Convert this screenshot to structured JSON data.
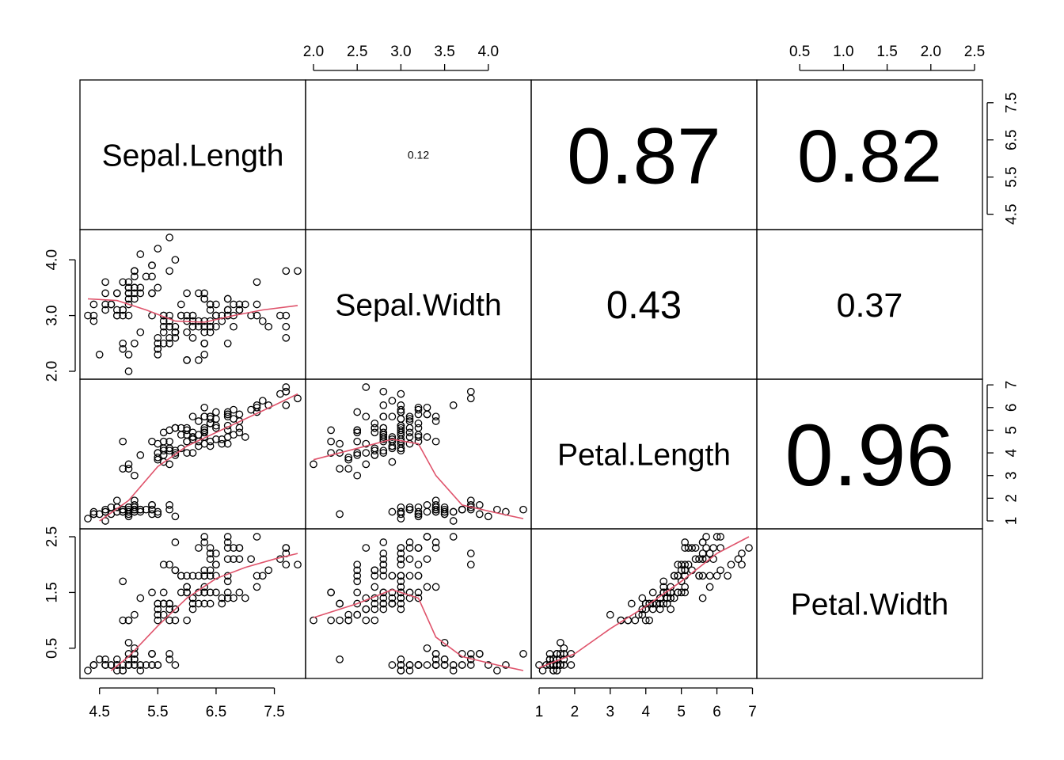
{
  "chart_data": {
    "type": "scatter",
    "variables": [
      "Sepal.Length",
      "Sepal.Width",
      "Petal.Length",
      "Petal.Width"
    ],
    "ranges": {
      "Sepal.Length": [
        4.3,
        7.9
      ],
      "Sepal.Width": [
        2.0,
        4.4
      ],
      "Petal.Length": [
        1.0,
        6.9
      ],
      "Petal.Width": [
        0.1,
        2.5
      ]
    },
    "ticks": {
      "Sepal.Length": [
        "4.5",
        "5.5",
        "6.5",
        "7.5"
      ],
      "Sepal.Width": [
        "2.0",
        "2.5",
        "3.0",
        "3.5",
        "4.0"
      ],
      "Petal.Length": [
        "1",
        "2",
        "3",
        "4",
        "5",
        "6",
        "7"
      ],
      "Petal.Width": [
        "0.5",
        "1.0",
        "1.5",
        "2.0",
        "2.5"
      ]
    },
    "left_axis_ticks": {
      "Sepal.Width": [
        "2.0",
        "3.0",
        "4.0"
      ],
      "Petal.Width": [
        "0.5",
        "1.5",
        "2.5"
      ]
    },
    "right_axis_ticks": {
      "Sepal.Length": [
        "4.5",
        "5.5",
        "6.5",
        "7.5"
      ],
      "Petal.Length": [
        "1",
        "2",
        "3",
        "4",
        "5",
        "6",
        "7"
      ]
    },
    "correlations": [
      {
        "row": 0,
        "col": 1,
        "value": "0.12"
      },
      {
        "row": 0,
        "col": 2,
        "value": "0.87"
      },
      {
        "row": 0,
        "col": 3,
        "value": "0.82"
      },
      {
        "row": 1,
        "col": 2,
        "value": "0.43"
      },
      {
        "row": 1,
        "col": 3,
        "value": "0.37"
      },
      {
        "row": 2,
        "col": 3,
        "value": "0.96"
      }
    ],
    "point_color": "#000000",
    "smooth_color": "#DF536B",
    "smooth_lines": {
      "SL_SW": [
        [
          4.3,
          3.3
        ],
        [
          4.8,
          3.27
        ],
        [
          5.3,
          3.1
        ],
        [
          5.8,
          2.9
        ],
        [
          6.3,
          2.88
        ],
        [
          6.8,
          3.0
        ],
        [
          7.3,
          3.1
        ],
        [
          7.9,
          3.18
        ]
      ],
      "SL_PL": [
        [
          4.5,
          1.0
        ],
        [
          5.0,
          1.9
        ],
        [
          5.5,
          3.4
        ],
        [
          6.0,
          4.3
        ],
        [
          6.5,
          4.9
        ],
        [
          7.0,
          5.5
        ],
        [
          7.5,
          6.1
        ],
        [
          7.9,
          6.6
        ]
      ],
      "SL_PW": [
        [
          4.7,
          0.1
        ],
        [
          5.0,
          0.35
        ],
        [
          5.5,
          0.9
        ],
        [
          6.0,
          1.4
        ],
        [
          6.5,
          1.75
        ],
        [
          7.0,
          1.95
        ],
        [
          7.5,
          2.1
        ],
        [
          7.9,
          2.2
        ]
      ],
      "SW_PL": [
        [
          2.0,
          3.7
        ],
        [
          2.5,
          4.2
        ],
        [
          2.9,
          4.6
        ],
        [
          3.2,
          4.4
        ],
        [
          3.4,
          3.0
        ],
        [
          3.7,
          1.7
        ],
        [
          4.1,
          1.35
        ],
        [
          4.4,
          1.1
        ]
      ],
      "SW_PW": [
        [
          2.0,
          1.05
        ],
        [
          2.5,
          1.3
        ],
        [
          2.9,
          1.55
        ],
        [
          3.2,
          1.4
        ],
        [
          3.4,
          0.7
        ],
        [
          3.7,
          0.35
        ],
        [
          4.1,
          0.2
        ],
        [
          4.4,
          0.1
        ]
      ],
      "PL_PW": [
        [
          1.0,
          0.15
        ],
        [
          2.0,
          0.4
        ],
        [
          3.0,
          0.85
        ],
        [
          4.0,
          1.25
        ],
        [
          5.0,
          1.7
        ],
        [
          6.0,
          2.2
        ],
        [
          6.9,
          2.5
        ]
      ]
    },
    "samples": [
      [
        5.1,
        3.5,
        1.4,
        0.2
      ],
      [
        4.9,
        3.0,
        1.4,
        0.2
      ],
      [
        4.7,
        3.2,
        1.3,
        0.2
      ],
      [
        4.6,
        3.1,
        1.5,
        0.2
      ],
      [
        5.0,
        3.6,
        1.4,
        0.2
      ],
      [
        5.4,
        3.9,
        1.7,
        0.4
      ],
      [
        4.6,
        3.4,
        1.4,
        0.3
      ],
      [
        5.0,
        3.4,
        1.5,
        0.2
      ],
      [
        4.4,
        2.9,
        1.4,
        0.2
      ],
      [
        4.9,
        3.1,
        1.5,
        0.1
      ],
      [
        5.4,
        3.7,
        1.5,
        0.2
      ],
      [
        4.8,
        3.4,
        1.6,
        0.2
      ],
      [
        4.8,
        3.0,
        1.4,
        0.1
      ],
      [
        4.3,
        3.0,
        1.1,
        0.1
      ],
      [
        5.8,
        4.0,
        1.2,
        0.2
      ],
      [
        5.7,
        4.4,
        1.5,
        0.4
      ],
      [
        5.4,
        3.9,
        1.3,
        0.4
      ],
      [
        5.1,
        3.5,
        1.4,
        0.3
      ],
      [
        5.7,
        3.8,
        1.7,
        0.3
      ],
      [
        5.1,
        3.8,
        1.5,
        0.3
      ],
      [
        5.4,
        3.4,
        1.7,
        0.2
      ],
      [
        5.1,
        3.7,
        1.5,
        0.4
      ],
      [
        4.6,
        3.6,
        1.0,
        0.2
      ],
      [
        5.1,
        3.3,
        1.7,
        0.5
      ],
      [
        4.8,
        3.4,
        1.9,
        0.2
      ],
      [
        5.0,
        3.0,
        1.6,
        0.2
      ],
      [
        5.0,
        3.4,
        1.6,
        0.4
      ],
      [
        5.2,
        3.5,
        1.5,
        0.2
      ],
      [
        5.2,
        3.4,
        1.4,
        0.2
      ],
      [
        4.7,
        3.2,
        1.6,
        0.2
      ],
      [
        4.8,
        3.1,
        1.6,
        0.2
      ],
      [
        5.4,
        3.4,
        1.5,
        0.4
      ],
      [
        5.2,
        4.1,
        1.5,
        0.1
      ],
      [
        5.5,
        4.2,
        1.4,
        0.2
      ],
      [
        4.9,
        3.1,
        1.5,
        0.2
      ],
      [
        5.0,
        3.2,
        1.2,
        0.2
      ],
      [
        5.5,
        3.5,
        1.3,
        0.2
      ],
      [
        4.9,
        3.6,
        1.4,
        0.1
      ],
      [
        4.4,
        3.0,
        1.3,
        0.2
      ],
      [
        5.1,
        3.4,
        1.5,
        0.2
      ],
      [
        5.0,
        3.5,
        1.3,
        0.3
      ],
      [
        4.5,
        2.3,
        1.3,
        0.3
      ],
      [
        4.4,
        3.2,
        1.3,
        0.2
      ],
      [
        5.0,
        3.5,
        1.6,
        0.6
      ],
      [
        5.1,
        3.8,
        1.9,
        0.4
      ],
      [
        4.8,
        3.0,
        1.4,
        0.3
      ],
      [
        5.1,
        3.8,
        1.6,
        0.2
      ],
      [
        4.6,
        3.2,
        1.4,
        0.2
      ],
      [
        5.3,
        3.7,
        1.5,
        0.2
      ],
      [
        5.0,
        3.3,
        1.4,
        0.2
      ],
      [
        7.0,
        3.2,
        4.7,
        1.4
      ],
      [
        6.4,
        3.2,
        4.5,
        1.5
      ],
      [
        6.9,
        3.1,
        4.9,
        1.5
      ],
      [
        5.5,
        2.3,
        4.0,
        1.3
      ],
      [
        6.5,
        2.8,
        4.6,
        1.5
      ],
      [
        5.7,
        2.8,
        4.5,
        1.3
      ],
      [
        6.3,
        3.3,
        4.7,
        1.6
      ],
      [
        4.9,
        2.4,
        3.3,
        1.0
      ],
      [
        6.6,
        2.9,
        4.6,
        1.3
      ],
      [
        5.2,
        2.7,
        3.9,
        1.4
      ],
      [
        5.0,
        2.0,
        3.5,
        1.0
      ],
      [
        5.9,
        3.0,
        4.2,
        1.5
      ],
      [
        6.0,
        2.2,
        4.0,
        1.0
      ],
      [
        6.1,
        2.9,
        4.7,
        1.4
      ],
      [
        5.6,
        2.9,
        3.6,
        1.3
      ],
      [
        6.7,
        3.1,
        4.4,
        1.4
      ],
      [
        5.6,
        3.0,
        4.5,
        1.5
      ],
      [
        5.8,
        2.7,
        4.1,
        1.0
      ],
      [
        6.2,
        2.2,
        4.5,
        1.5
      ],
      [
        5.6,
        2.5,
        3.9,
        1.1
      ],
      [
        5.9,
        3.2,
        4.8,
        1.8
      ],
      [
        6.1,
        2.8,
        4.0,
        1.3
      ],
      [
        6.3,
        2.5,
        4.9,
        1.5
      ],
      [
        6.1,
        2.8,
        4.7,
        1.2
      ],
      [
        6.4,
        2.9,
        4.3,
        1.3
      ],
      [
        6.6,
        3.0,
        4.4,
        1.4
      ],
      [
        6.8,
        2.8,
        4.8,
        1.4
      ],
      [
        6.7,
        3.0,
        5.0,
        1.7
      ],
      [
        6.0,
        2.9,
        4.5,
        1.5
      ],
      [
        5.7,
        2.6,
        3.5,
        1.0
      ],
      [
        5.5,
        2.4,
        3.8,
        1.1
      ],
      [
        5.5,
        2.4,
        3.7,
        1.0
      ],
      [
        5.8,
        2.7,
        3.9,
        1.2
      ],
      [
        6.0,
        2.7,
        5.1,
        1.6
      ],
      [
        5.4,
        3.0,
        4.5,
        1.5
      ],
      [
        6.0,
        3.4,
        4.5,
        1.6
      ],
      [
        6.7,
        3.1,
        4.7,
        1.5
      ],
      [
        6.3,
        2.3,
        4.4,
        1.3
      ],
      [
        5.6,
        3.0,
        4.1,
        1.3
      ],
      [
        5.5,
        2.5,
        4.0,
        1.3
      ],
      [
        5.5,
        2.6,
        4.4,
        1.2
      ],
      [
        6.1,
        3.0,
        4.6,
        1.4
      ],
      [
        5.8,
        2.6,
        4.0,
        1.2
      ],
      [
        5.0,
        2.3,
        3.3,
        1.0
      ],
      [
        5.6,
        2.7,
        4.2,
        1.3
      ],
      [
        5.7,
        3.0,
        4.2,
        1.2
      ],
      [
        5.7,
        2.9,
        4.2,
        1.3
      ],
      [
        6.2,
        2.9,
        4.3,
        1.3
      ],
      [
        5.1,
        2.5,
        3.0,
        1.1
      ],
      [
        5.7,
        2.8,
        4.1,
        1.3
      ],
      [
        6.3,
        3.3,
        6.0,
        2.5
      ],
      [
        5.8,
        2.7,
        5.1,
        1.9
      ],
      [
        7.1,
        3.0,
        5.9,
        2.1
      ],
      [
        6.3,
        2.9,
        5.6,
        1.8
      ],
      [
        6.5,
        3.0,
        5.8,
        2.2
      ],
      [
        7.6,
        3.0,
        6.6,
        2.1
      ],
      [
        4.9,
        2.5,
        4.5,
        1.7
      ],
      [
        7.3,
        2.9,
        6.3,
        1.8
      ],
      [
        6.7,
        2.5,
        5.8,
        1.8
      ],
      [
        7.2,
        3.6,
        6.1,
        2.5
      ],
      [
        6.5,
        3.2,
        5.1,
        2.0
      ],
      [
        6.4,
        2.7,
        5.3,
        1.9
      ],
      [
        6.8,
        3.0,
        5.5,
        2.1
      ],
      [
        5.7,
        2.5,
        5.0,
        2.0
      ],
      [
        5.8,
        2.8,
        5.1,
        2.4
      ],
      [
        6.4,
        3.2,
        5.3,
        2.3
      ],
      [
        6.5,
        3.0,
        5.5,
        1.8
      ],
      [
        7.7,
        3.8,
        6.7,
        2.2
      ],
      [
        7.7,
        2.6,
        6.9,
        2.3
      ],
      [
        6.0,
        2.2,
        5.0,
        1.5
      ],
      [
        6.9,
        3.2,
        5.7,
        2.3
      ],
      [
        5.6,
        2.8,
        4.9,
        2.0
      ],
      [
        7.7,
        2.8,
        6.7,
        2.0
      ],
      [
        6.3,
        2.7,
        4.9,
        1.8
      ],
      [
        6.7,
        3.3,
        5.7,
        2.1
      ],
      [
        7.2,
        3.2,
        6.0,
        1.8
      ],
      [
        6.2,
        2.8,
        4.8,
        1.8
      ],
      [
        6.1,
        3.0,
        4.9,
        1.8
      ],
      [
        6.4,
        2.8,
        5.6,
        2.1
      ],
      [
        7.2,
        3.0,
        5.8,
        1.6
      ],
      [
        7.4,
        2.8,
        6.1,
        1.9
      ],
      [
        7.9,
        3.8,
        6.4,
        2.0
      ],
      [
        6.4,
        2.8,
        5.6,
        2.2
      ],
      [
        6.3,
        2.8,
        5.1,
        1.5
      ],
      [
        6.1,
        2.6,
        5.6,
        1.4
      ],
      [
        7.7,
        3.0,
        6.1,
        2.3
      ],
      [
        6.3,
        3.4,
        5.6,
        2.4
      ],
      [
        6.4,
        3.1,
        5.5,
        1.8
      ],
      [
        6.0,
        3.0,
        4.8,
        1.8
      ],
      [
        6.9,
        3.1,
        5.4,
        2.1
      ],
      [
        6.7,
        3.1,
        5.6,
        2.4
      ],
      [
        6.9,
        3.1,
        5.1,
        2.3
      ],
      [
        5.8,
        2.7,
        5.1,
        1.9
      ],
      [
        6.8,
        3.2,
        5.9,
        2.3
      ],
      [
        6.7,
        3.3,
        5.7,
        2.5
      ],
      [
        6.7,
        3.0,
        5.2,
        2.3
      ],
      [
        6.3,
        2.5,
        5.0,
        1.9
      ],
      [
        6.5,
        3.0,
        5.2,
        2.0
      ],
      [
        6.2,
        3.4,
        5.4,
        2.3
      ],
      [
        5.9,
        3.0,
        5.1,
        1.8
      ]
    ]
  }
}
